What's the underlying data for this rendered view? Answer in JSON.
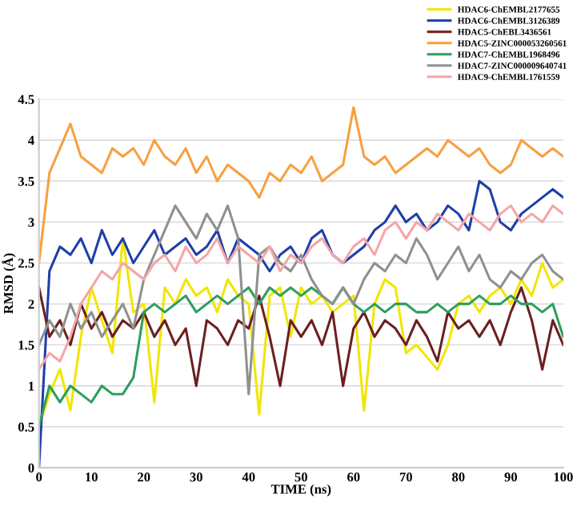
{
  "chart_data": {
    "type": "line",
    "xlabel": "TIME (ns)",
    "ylabel": "RMSD (Å)",
    "x": [
      0,
      2,
      4,
      6,
      8,
      10,
      12,
      14,
      16,
      18,
      20,
      22,
      24,
      26,
      28,
      30,
      32,
      34,
      36,
      38,
      40,
      42,
      44,
      46,
      48,
      50,
      52,
      54,
      56,
      58,
      60,
      62,
      64,
      66,
      68,
      70,
      72,
      74,
      76,
      78,
      80,
      82,
      84,
      86,
      88,
      90,
      92,
      94,
      96,
      98,
      100
    ],
    "xlim": [
      0,
      100
    ],
    "xticks": [
      0,
      10,
      20,
      30,
      40,
      50,
      60,
      70,
      80,
      90,
      100
    ],
    "ylim": [
      0,
      4.5
    ],
    "yticks": [
      0,
      0.5,
      1,
      1.5,
      2,
      2.5,
      3,
      3.5,
      4,
      4.5
    ],
    "grid": "y",
    "legend": "top right",
    "marker": "none",
    "line_style": "solid",
    "series": [
      {
        "name": "HDAC6-ChEMBL2177655",
        "color": "#f2e600",
        "values": [
          0.5,
          0.9,
          1.2,
          0.7,
          1.6,
          2.2,
          1.8,
          1.4,
          2.8,
          1.9,
          2.0,
          0.8,
          2.2,
          2.0,
          2.3,
          2.1,
          2.2,
          1.9,
          2.3,
          2.1,
          2.0,
          0.65,
          2.1,
          2.2,
          1.6,
          2.2,
          2.0,
          2.1,
          1.9,
          2.0,
          2.1,
          0.7,
          2.0,
          2.3,
          2.2,
          1.4,
          1.5,
          1.35,
          1.2,
          1.5,
          2.0,
          2.1,
          1.9,
          2.1,
          2.2,
          2.0,
          2.3,
          2.1,
          2.5,
          2.2,
          2.3
        ]
      },
      {
        "name": "HDAC6-ChEMBL3126389",
        "color": "#1f3fa8",
        "values": [
          0,
          2.4,
          2.7,
          2.6,
          2.8,
          2.5,
          2.9,
          2.6,
          2.8,
          2.5,
          2.7,
          2.9,
          2.6,
          2.7,
          2.8,
          2.6,
          2.7,
          2.9,
          2.5,
          2.8,
          2.7,
          2.6,
          2.4,
          2.6,
          2.7,
          2.5,
          2.8,
          2.9,
          2.6,
          2.5,
          2.6,
          2.7,
          2.9,
          3.0,
          3.2,
          3.0,
          3.1,
          2.9,
          3.0,
          3.2,
          3.1,
          2.9,
          3.5,
          3.4,
          3.0,
          2.9,
          3.1,
          3.2,
          3.3,
          3.4,
          3.3
        ]
      },
      {
        "name": "HDAC5-ChEBL3436561",
        "color": "#6b2020",
        "values": [
          2.2,
          1.6,
          1.8,
          1.5,
          2.0,
          1.7,
          1.9,
          1.6,
          1.8,
          1.7,
          1.9,
          1.6,
          1.8,
          1.5,
          1.7,
          1.0,
          1.8,
          1.7,
          1.5,
          1.8,
          1.7,
          2.1,
          1.6,
          1.0,
          1.8,
          1.6,
          1.8,
          1.5,
          1.9,
          1.0,
          1.7,
          1.9,
          1.6,
          1.8,
          1.7,
          1.5,
          1.8,
          1.6,
          1.3,
          1.9,
          1.7,
          1.8,
          1.6,
          1.8,
          1.5,
          1.9,
          2.2,
          1.8,
          1.2,
          1.8,
          1.5
        ]
      },
      {
        "name": "HDAC5-ZINC000053260561",
        "color": "#f7a040",
        "values": [
          2.5,
          3.6,
          3.9,
          4.2,
          3.8,
          3.7,
          3.6,
          3.9,
          3.8,
          3.9,
          3.7,
          4.0,
          3.8,
          3.7,
          3.9,
          3.6,
          3.8,
          3.5,
          3.7,
          3.6,
          3.5,
          3.3,
          3.6,
          3.5,
          3.7,
          3.6,
          3.8,
          3.5,
          3.6,
          3.7,
          4.4,
          3.8,
          3.7,
          3.8,
          3.6,
          3.7,
          3.8,
          3.9,
          3.8,
          4.0,
          3.9,
          3.8,
          3.9,
          3.7,
          3.6,
          3.7,
          4.0,
          3.9,
          3.8,
          3.9,
          3.8
        ]
      },
      {
        "name": "HDAC7-ChEMBL1968496",
        "color": "#2e9e5e",
        "values": [
          0.5,
          1.0,
          0.8,
          1.0,
          0.9,
          0.8,
          1.0,
          0.9,
          0.9,
          1.1,
          1.9,
          2.0,
          1.9,
          2.0,
          2.1,
          1.9,
          2.0,
          2.1,
          2.0,
          2.1,
          2.2,
          2.0,
          2.2,
          2.1,
          2.2,
          2.1,
          2.2,
          2.1,
          2.0,
          2.2,
          2.0,
          1.9,
          2.0,
          1.9,
          2.0,
          2.0,
          1.9,
          1.9,
          2.0,
          1.9,
          2.0,
          2.0,
          2.1,
          2.0,
          2.0,
          2.1,
          2.0,
          2.0,
          1.9,
          2.0,
          1.6
        ]
      },
      {
        "name": "HDAC7-ZINC000009640741",
        "color": "#909090",
        "values": [
          1.5,
          1.8,
          1.6,
          2.0,
          1.7,
          1.9,
          1.6,
          1.8,
          2.0,
          1.7,
          2.3,
          2.6,
          2.9,
          3.2,
          3.0,
          2.8,
          3.1,
          2.9,
          3.2,
          2.8,
          0.9,
          2.6,
          2.7,
          2.5,
          2.4,
          2.6,
          2.3,
          2.1,
          2.0,
          2.2,
          2.0,
          2.3,
          2.5,
          2.4,
          2.6,
          2.5,
          2.8,
          2.6,
          2.3,
          2.5,
          2.7,
          2.4,
          2.6,
          2.3,
          2.2,
          2.4,
          2.3,
          2.5,
          2.6,
          2.4,
          2.3
        ]
      },
      {
        "name": "HDAC9-ChEMBL1761559",
        "color": "#f4a6a6",
        "values": [
          1.2,
          1.4,
          1.3,
          1.6,
          2.0,
          2.2,
          2.4,
          2.3,
          2.5,
          2.4,
          2.3,
          2.5,
          2.6,
          2.4,
          2.7,
          2.5,
          2.6,
          2.8,
          2.5,
          2.7,
          2.6,
          2.5,
          2.7,
          2.4,
          2.6,
          2.5,
          2.7,
          2.8,
          2.6,
          2.5,
          2.7,
          2.8,
          2.6,
          2.9,
          3.0,
          2.8,
          3.0,
          2.9,
          3.1,
          3.0,
          2.9,
          3.1,
          3.0,
          2.9,
          3.1,
          3.2,
          3.0,
          3.1,
          3.0,
          3.2,
          3.1
        ]
      }
    ]
  }
}
